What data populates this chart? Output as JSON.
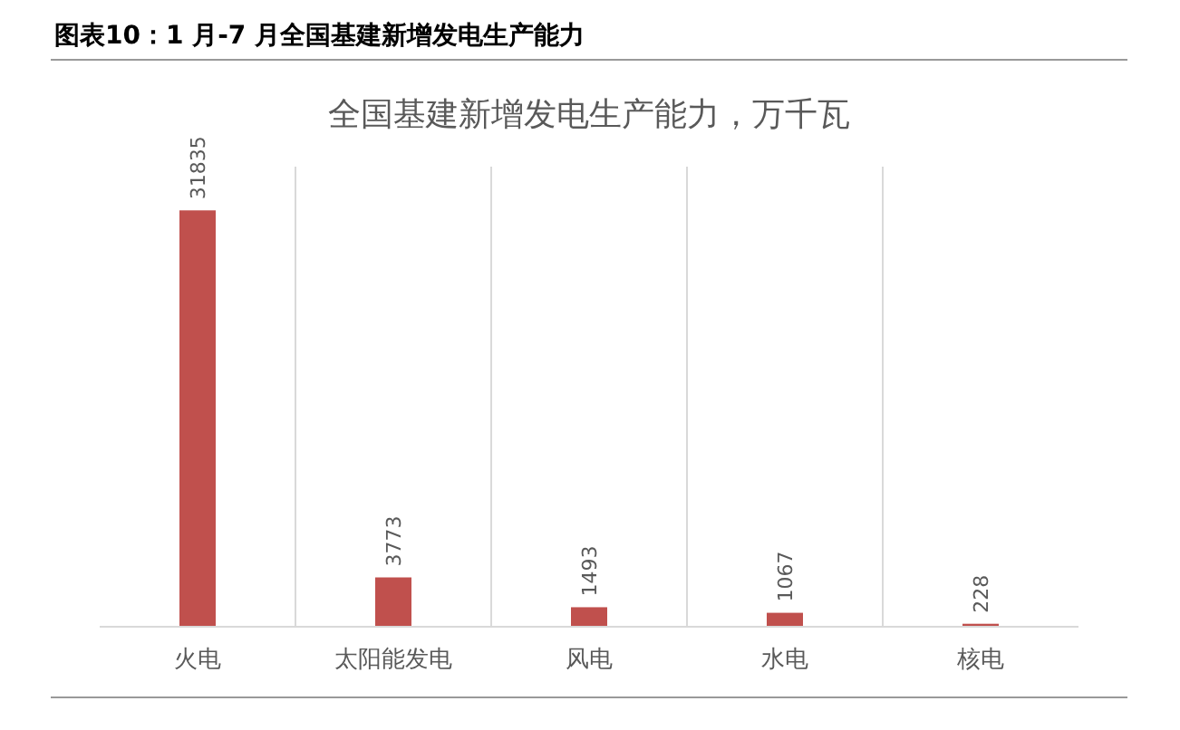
{
  "chart_data": {
    "type": "bar",
    "title": "图表10：1 月-7 月全国基建新增发电生产能力",
    "subtitle": "全国基建新增发电生产能力，万千瓦",
    "categories": [
      "火电",
      "太阳能发电",
      "风电",
      "水电",
      "核电"
    ],
    "values": [
      31835,
      3773,
      1493,
      1067,
      228
    ],
    "color": "#c0504d",
    "data_labels": true,
    "grid": "x"
  }
}
